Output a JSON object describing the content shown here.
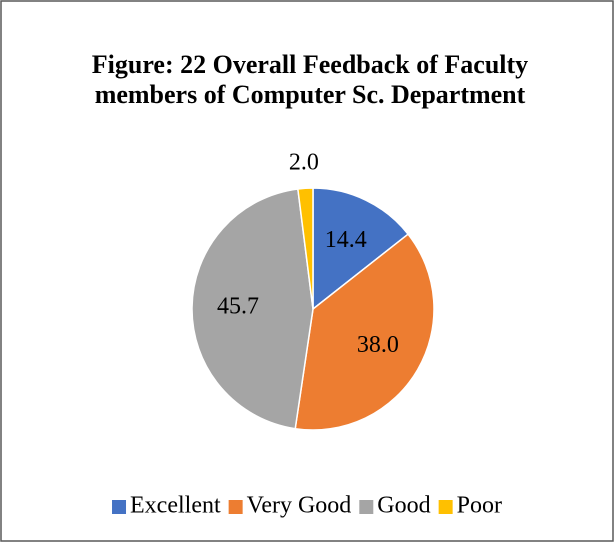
{
  "chart_data": {
    "type": "pie",
    "title": "Figure: 22  Overall Feedback of Faculty members of Computer Sc. Department",
    "categories": [
      "Excellent",
      "Very Good",
      "Good",
      "Poor"
    ],
    "values": [
      14.4,
      38.0,
      45.7,
      2.0
    ],
    "value_labels": [
      "14.4",
      "38.0",
      "45.7",
      "2.0"
    ],
    "colors": [
      "#4472c4",
      "#ed7d31",
      "#a5a5a5",
      "#ffc000"
    ],
    "legend": "bottom"
  }
}
